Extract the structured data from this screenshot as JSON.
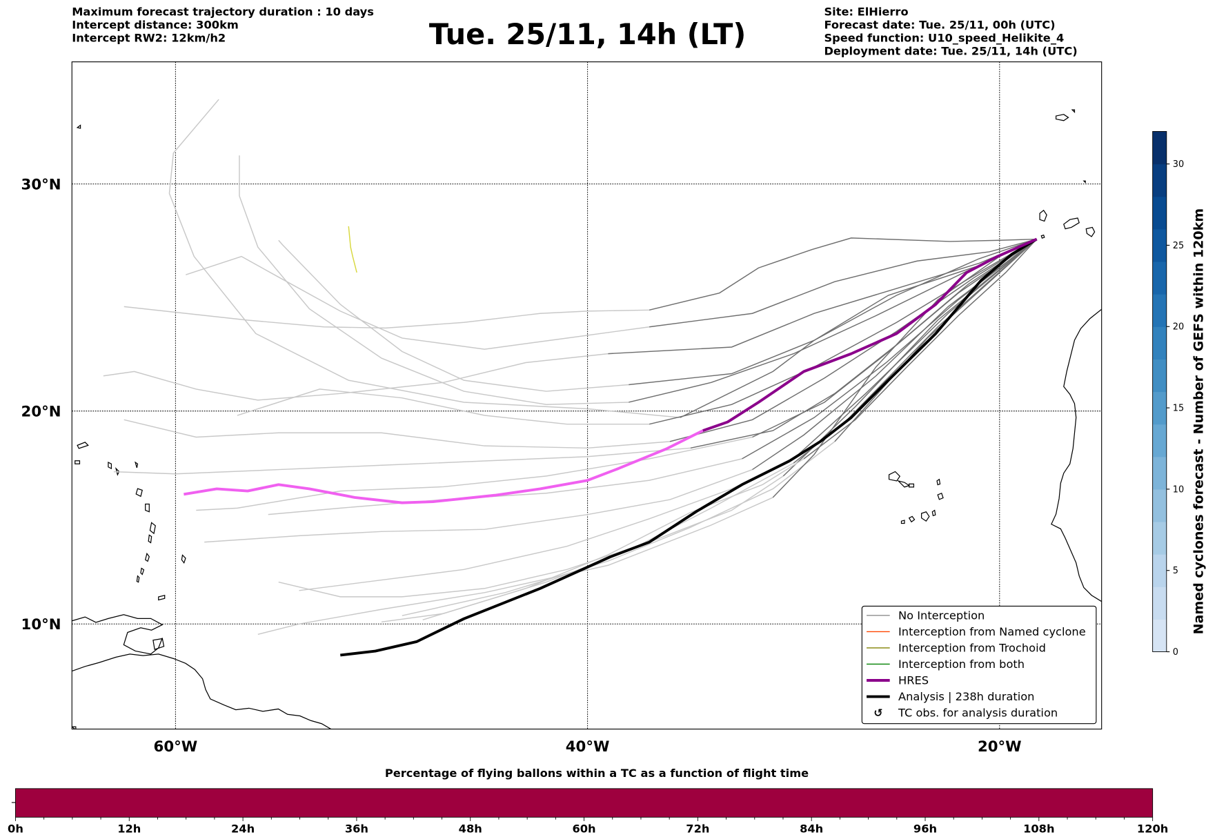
{
  "header": {
    "left": [
      "Maximum forecast trajectory duration : 10 days",
      "Intercept distance: 300km",
      "Intercept RW2: 12km/h2"
    ],
    "title": "Tue. 25/11, 14h (LT)",
    "right": [
      "Site: ElHierro",
      "Forecast date: Tue. 25/11, 00h (UTC)",
      "Speed function: U10_speed_Helikite_4",
      "Deployment date: Tue. 25/11, 14h (UTC)"
    ]
  },
  "map": {
    "lon_range": [
      -65,
      -15
    ],
    "lat_range": [
      5,
      35
    ],
    "lon_ticks": [
      {
        "value": -60,
        "label": "60°W"
      },
      {
        "value": -40,
        "label": "40°W"
      },
      {
        "value": -20,
        "label": "20°W"
      }
    ],
    "lat_ticks": [
      {
        "value": 30,
        "label": "30°N"
      },
      {
        "value": 20,
        "label": "20°N"
      },
      {
        "value": 10,
        "label": "10°N"
      }
    ],
    "origin": [
      -18.2,
      27.65
    ],
    "colors": {
      "dark": "#6e6e6e",
      "light": "#c8c8c8",
      "hres": "#8b008b",
      "hres_late": "#f060f0",
      "analysis": "#000000",
      "trochoid": "#d8d840"
    },
    "trajectories": [
      {
        "dark": [
          [
            -20,
            27.6
          ],
          [
            -22.4,
            27.55
          ],
          [
            -27.2,
            27.7
          ],
          [
            -29.1,
            27.2
          ],
          [
            -31.7,
            26.4
          ],
          [
            -33.6,
            25.3
          ],
          [
            -37,
            24.55
          ]
        ],
        "light": [
          [
            -40,
            24.5
          ],
          [
            -42.3,
            24.4
          ],
          [
            -46,
            24.0
          ],
          [
            -49.8,
            23.75
          ],
          [
            -52.8,
            23.8
          ],
          [
            -56.5,
            24.1
          ],
          [
            -62.5,
            24.7
          ]
        ]
      },
      {
        "dark": [
          [
            -20.5,
            27.1
          ],
          [
            -24,
            26.7
          ],
          [
            -28,
            25.8
          ],
          [
            -32,
            24.4
          ],
          [
            -37,
            23.8
          ]
        ],
        "light": [
          [
            -41,
            23.3
          ],
          [
            -45,
            22.8
          ],
          [
            -49,
            23.3
          ],
          [
            -52,
            24.5
          ],
          [
            -55,
            26.0
          ],
          [
            -56.8,
            26.9
          ],
          [
            -59.5,
            26.1
          ]
        ]
      },
      {
        "dark": [
          [
            -21,
            26.6
          ],
          [
            -25,
            25.5
          ],
          [
            -29,
            24.4
          ],
          [
            -33,
            22.9
          ],
          [
            -39,
            22.6
          ]
        ],
        "light": [
          [
            -43,
            22.2
          ],
          [
            -47,
            21.3
          ],
          [
            -52,
            20.8
          ],
          [
            -56,
            20.5
          ],
          [
            -59,
            21.0
          ],
          [
            -62,
            21.8
          ],
          [
            -63.5,
            21.6
          ]
        ]
      },
      {
        "dark": [
          [
            -21,
            26.8
          ],
          [
            -25,
            25.2
          ],
          [
            -29,
            23.2
          ],
          [
            -33,
            21.7
          ],
          [
            -38,
            21.2
          ]
        ],
        "light": [
          [
            -42,
            20.9
          ],
          [
            -46,
            21.4
          ],
          [
            -49,
            22.7
          ],
          [
            -52,
            24.8
          ],
          [
            -54.8,
            27.4
          ],
          [
            -55,
            27.6
          ]
        ]
      },
      {
        "dark": [
          [
            -21.5,
            26.3
          ],
          [
            -26,
            24.3
          ],
          [
            -30,
            22.6
          ],
          [
            -34,
            21.3
          ],
          [
            -38,
            20.4
          ]
        ],
        "light": [
          [
            -42,
            20.3
          ],
          [
            -46,
            20.9
          ],
          [
            -50,
            22.4
          ],
          [
            -53.5,
            24.6
          ],
          [
            -56,
            27.3
          ],
          [
            -56.9,
            29.5
          ],
          [
            -56.9,
            31.2
          ]
        ]
      },
      {
        "dark": [
          [
            -21,
            26.5
          ],
          [
            -25.4,
            25.2
          ],
          [
            -29,
            23.2
          ],
          [
            -31,
            21.8
          ],
          [
            -35.5,
            19.7
          ]
        ],
        "light": [
          [
            -40,
            20.1
          ],
          [
            -46,
            20.4
          ],
          [
            -51.6,
            21.4
          ],
          [
            -56.1,
            23.5
          ],
          [
            -59.1,
            26.9
          ],
          [
            -60.3,
            29.6
          ],
          [
            -60.1,
            31.3
          ],
          [
            -57.9,
            33.5
          ]
        ]
      },
      {
        "dark": [
          [
            -21,
            26.2
          ],
          [
            -25,
            24.0
          ],
          [
            -29,
            22.0
          ],
          [
            -33,
            20.3
          ],
          [
            -37,
            19.4
          ]
        ],
        "light": [
          [
            -41,
            19.4
          ],
          [
            -45,
            19.8
          ],
          [
            -49,
            20.6
          ],
          [
            -53,
            21.0
          ],
          [
            -57,
            19.8
          ]
        ]
      },
      {
        "dark": [
          [
            -21.2,
            26.0
          ],
          [
            -25,
            23.6
          ],
          [
            -28.5,
            21.5
          ],
          [
            -32,
            19.6
          ],
          [
            -36,
            18.6
          ]
        ],
        "light": [
          [
            -40,
            18.3
          ],
          [
            -45,
            18.4
          ],
          [
            -50,
            19.0
          ],
          [
            -55,
            19.0
          ],
          [
            -59,
            18.8
          ],
          [
            -62.5,
            19.6
          ]
        ]
      },
      {
        "dark": [
          [
            -21.5,
            25.7
          ],
          [
            -25,
            23.0
          ],
          [
            -28,
            20.8
          ],
          [
            -31,
            19.1
          ],
          [
            -35,
            18.3
          ]
        ],
        "light": [
          [
            -40,
            17.9
          ],
          [
            -45,
            17.7
          ],
          [
            -50,
            17.5
          ],
          [
            -55,
            17.3
          ],
          [
            -60,
            17.1
          ],
          [
            -63,
            17.2
          ]
        ]
      },
      {
        "dark": [
          [
            -22,
            25.3
          ],
          [
            -25.5,
            22.6
          ],
          [
            -28.5,
            20.4
          ],
          [
            -32,
            18.8
          ]
        ],
        "light": [
          [
            -37,
            17.8
          ],
          [
            -42,
            17.0
          ],
          [
            -47,
            16.5
          ],
          [
            -52,
            16.3
          ],
          [
            -57,
            15.5
          ],
          [
            -59,
            15.4
          ]
        ]
      },
      {
        "dark": [
          [
            -22,
            25.0
          ],
          [
            -25.5,
            22.2
          ],
          [
            -29,
            19.7
          ],
          [
            -32.5,
            17.8
          ]
        ],
        "light": [
          [
            -37,
            16.8
          ],
          [
            -42,
            16.2
          ],
          [
            -47,
            15.9
          ],
          [
            -52,
            15.5
          ],
          [
            -55.5,
            15.2
          ]
        ]
      },
      {
        "dark": [
          [
            -22.5,
            24.7
          ],
          [
            -26,
            21.6
          ],
          [
            -29.5,
            18.9
          ],
          [
            -32,
            17.3
          ]
        ],
        "light": [
          [
            -36,
            15.9
          ],
          [
            -40,
            15.2
          ],
          [
            -45,
            14.5
          ],
          [
            -50,
            14.4
          ],
          [
            -54,
            14.2
          ],
          [
            -58.6,
            13.9
          ]
        ]
      },
      {
        "dark": [
          [
            -22.5,
            24.4
          ],
          [
            -26.5,
            20.8
          ],
          [
            -30,
            17.8
          ]
        ],
        "light": [
          [
            -33,
            16.4
          ],
          [
            -37,
            15.0
          ],
          [
            -41,
            13.7
          ],
          [
            -46,
            12.6
          ],
          [
            -50,
            12.1
          ],
          [
            -54,
            11.6
          ]
        ]
      },
      {
        "dark": [
          [
            -23,
            24.1
          ],
          [
            -27,
            20.2
          ],
          [
            -30.5,
            17.0
          ]
        ],
        "light": [
          [
            -33,
            15.4
          ],
          [
            -37,
            13.9
          ],
          [
            -41,
            12.6
          ],
          [
            -45,
            11.7
          ],
          [
            -49,
            11.3
          ],
          [
            -52,
            11.3
          ],
          [
            -55,
            12.0
          ]
        ]
      },
      {
        "dark": [
          [
            -23,
            23.8
          ],
          [
            -27.5,
            19.5
          ],
          [
            -30,
            17.6
          ]
        ],
        "light": [
          [
            -34,
            15.5
          ],
          [
            -38,
            13.5
          ],
          [
            -42,
            12.0
          ],
          [
            -47,
            10.5
          ],
          [
            -50,
            10.1
          ]
        ]
      },
      {
        "dark": [
          [
            -23.5,
            23.3
          ],
          [
            -28,
            18.6
          ]
        ],
        "light": [
          [
            -31,
            16.4
          ],
          [
            -35,
            14.6
          ],
          [
            -39,
            13.0
          ],
          [
            -44,
            11.5
          ],
          [
            -49,
            10.4
          ]
        ]
      },
      {
        "dark": [
          [
            -20,
            26.9
          ],
          [
            -23,
            25.0
          ],
          [
            -26,
            22.0
          ],
          [
            -29,
            18.0
          ],
          [
            -31,
            16.0
          ]
        ],
        "light": [
          [
            -34,
            14.7
          ],
          [
            -39,
            12.8
          ],
          [
            -45,
            11.5
          ],
          [
            -50,
            10.7
          ],
          [
            -54,
            10.0
          ],
          [
            -56,
            9.5
          ]
        ]
      },
      {
        "dark": [
          [
            -19.7,
            26.2
          ],
          [
            -22,
            24.3
          ],
          [
            -24.5,
            22.0
          ],
          [
            -27,
            19.6
          ],
          [
            -29.5,
            17.8
          ]
        ],
        "light": [
          [
            -31.5,
            16.6
          ],
          [
            -35,
            15.3
          ],
          [
            -39,
            13.3
          ],
          [
            -43,
            11.7
          ],
          [
            -48,
            10.2
          ]
        ]
      }
    ],
    "trochoid": [
      [
        -51.6,
        28.2
      ],
      [
        -51.5,
        27.3
      ],
      [
        -51.4,
        26.9
      ],
      [
        -51.2,
        26.2
      ]
    ],
    "hres": [
      [
        -18.2,
        27.65
      ],
      [
        -20.1,
        26.9
      ],
      [
        -21.6,
        26.2
      ],
      [
        -23.1,
        24.8
      ],
      [
        -25.0,
        23.5
      ],
      [
        -27.2,
        22.6
      ],
      [
        -29.5,
        21.8
      ],
      [
        -31.7,
        20.4
      ],
      [
        -33.2,
        19.5
      ],
      [
        -34.4,
        19.1
      ]
    ],
    "hres_late": [
      [
        -34.4,
        19.1
      ],
      [
        -36.2,
        18.25
      ],
      [
        -38.5,
        17.35
      ],
      [
        -40.0,
        16.8
      ],
      [
        -42.3,
        16.4
      ],
      [
        -44.5,
        16.1
      ],
      [
        -47.5,
        15.8
      ],
      [
        -49.0,
        15.75
      ],
      [
        -51.3,
        16.0
      ],
      [
        -53.5,
        16.4
      ],
      [
        -55.0,
        16.6
      ],
      [
        -56.5,
        16.3
      ],
      [
        -58.0,
        16.4
      ],
      [
        -59.6,
        16.15
      ]
    ],
    "analysis": [
      [
        -18.2,
        27.65
      ],
      [
        -19.4,
        27.0
      ],
      [
        -20.9,
        25.85
      ],
      [
        -23.1,
        23.5
      ],
      [
        -25.4,
        21.4
      ],
      [
        -27.2,
        19.7
      ],
      [
        -28.7,
        18.6
      ],
      [
        -30.2,
        17.7
      ],
      [
        -32.5,
        16.6
      ],
      [
        -34.7,
        15.35
      ],
      [
        -37.0,
        13.9
      ],
      [
        -38.9,
        13.2
      ],
      [
        -42.3,
        11.7
      ],
      [
        -46.0,
        10.25
      ],
      [
        -48.3,
        9.15
      ],
      [
        -50.3,
        8.7
      ],
      [
        -52.0,
        8.5
      ]
    ]
  },
  "legend": {
    "items": [
      {
        "label": "No Interception",
        "color": "#808080",
        "kind": "thin"
      },
      {
        "label": "Interception from Named cyclone",
        "color": "#ff4500",
        "kind": "thin"
      },
      {
        "label": "Interception from Trochoid",
        "color": "#808000",
        "kind": "thin"
      },
      {
        "label": "Interception from both",
        "color": "#008000",
        "kind": "thin"
      },
      {
        "label": "HRES",
        "color": "#8b008b",
        "kind": "thick"
      },
      {
        "label": "Analysis | 238h duration",
        "color": "#000000",
        "kind": "thick"
      },
      {
        "label": "TC obs. for analysis duration",
        "color": "#000000",
        "kind": "symbol",
        "symbol": "↺"
      }
    ]
  },
  "colorbar": {
    "label": "Named cyclones forecast - Number of GEFS within 120km",
    "range": [
      0,
      32
    ],
    "ticks": [
      "0",
      "5",
      "10",
      "15",
      "20",
      "25",
      "30"
    ],
    "colors": [
      "#d6e4f4",
      "#c8dcf0",
      "#b9d4ec",
      "#a6cbe5",
      "#93c0df",
      "#7db4d9",
      "#67a8d3",
      "#539bcb",
      "#418ec3",
      "#3282bd",
      "#2474b5",
      "#1866ab",
      "#0f589f",
      "#084b91",
      "#083e80",
      "#08306b"
    ]
  },
  "flight_bar": {
    "title": "Percentage of flying ballons within a TC as a function of flight time",
    "color": "#9e003e",
    "ticks": [
      "0h",
      "12h",
      "24h",
      "36h",
      "48h",
      "60h",
      "72h",
      "84h",
      "96h",
      "108h",
      "120h"
    ]
  }
}
